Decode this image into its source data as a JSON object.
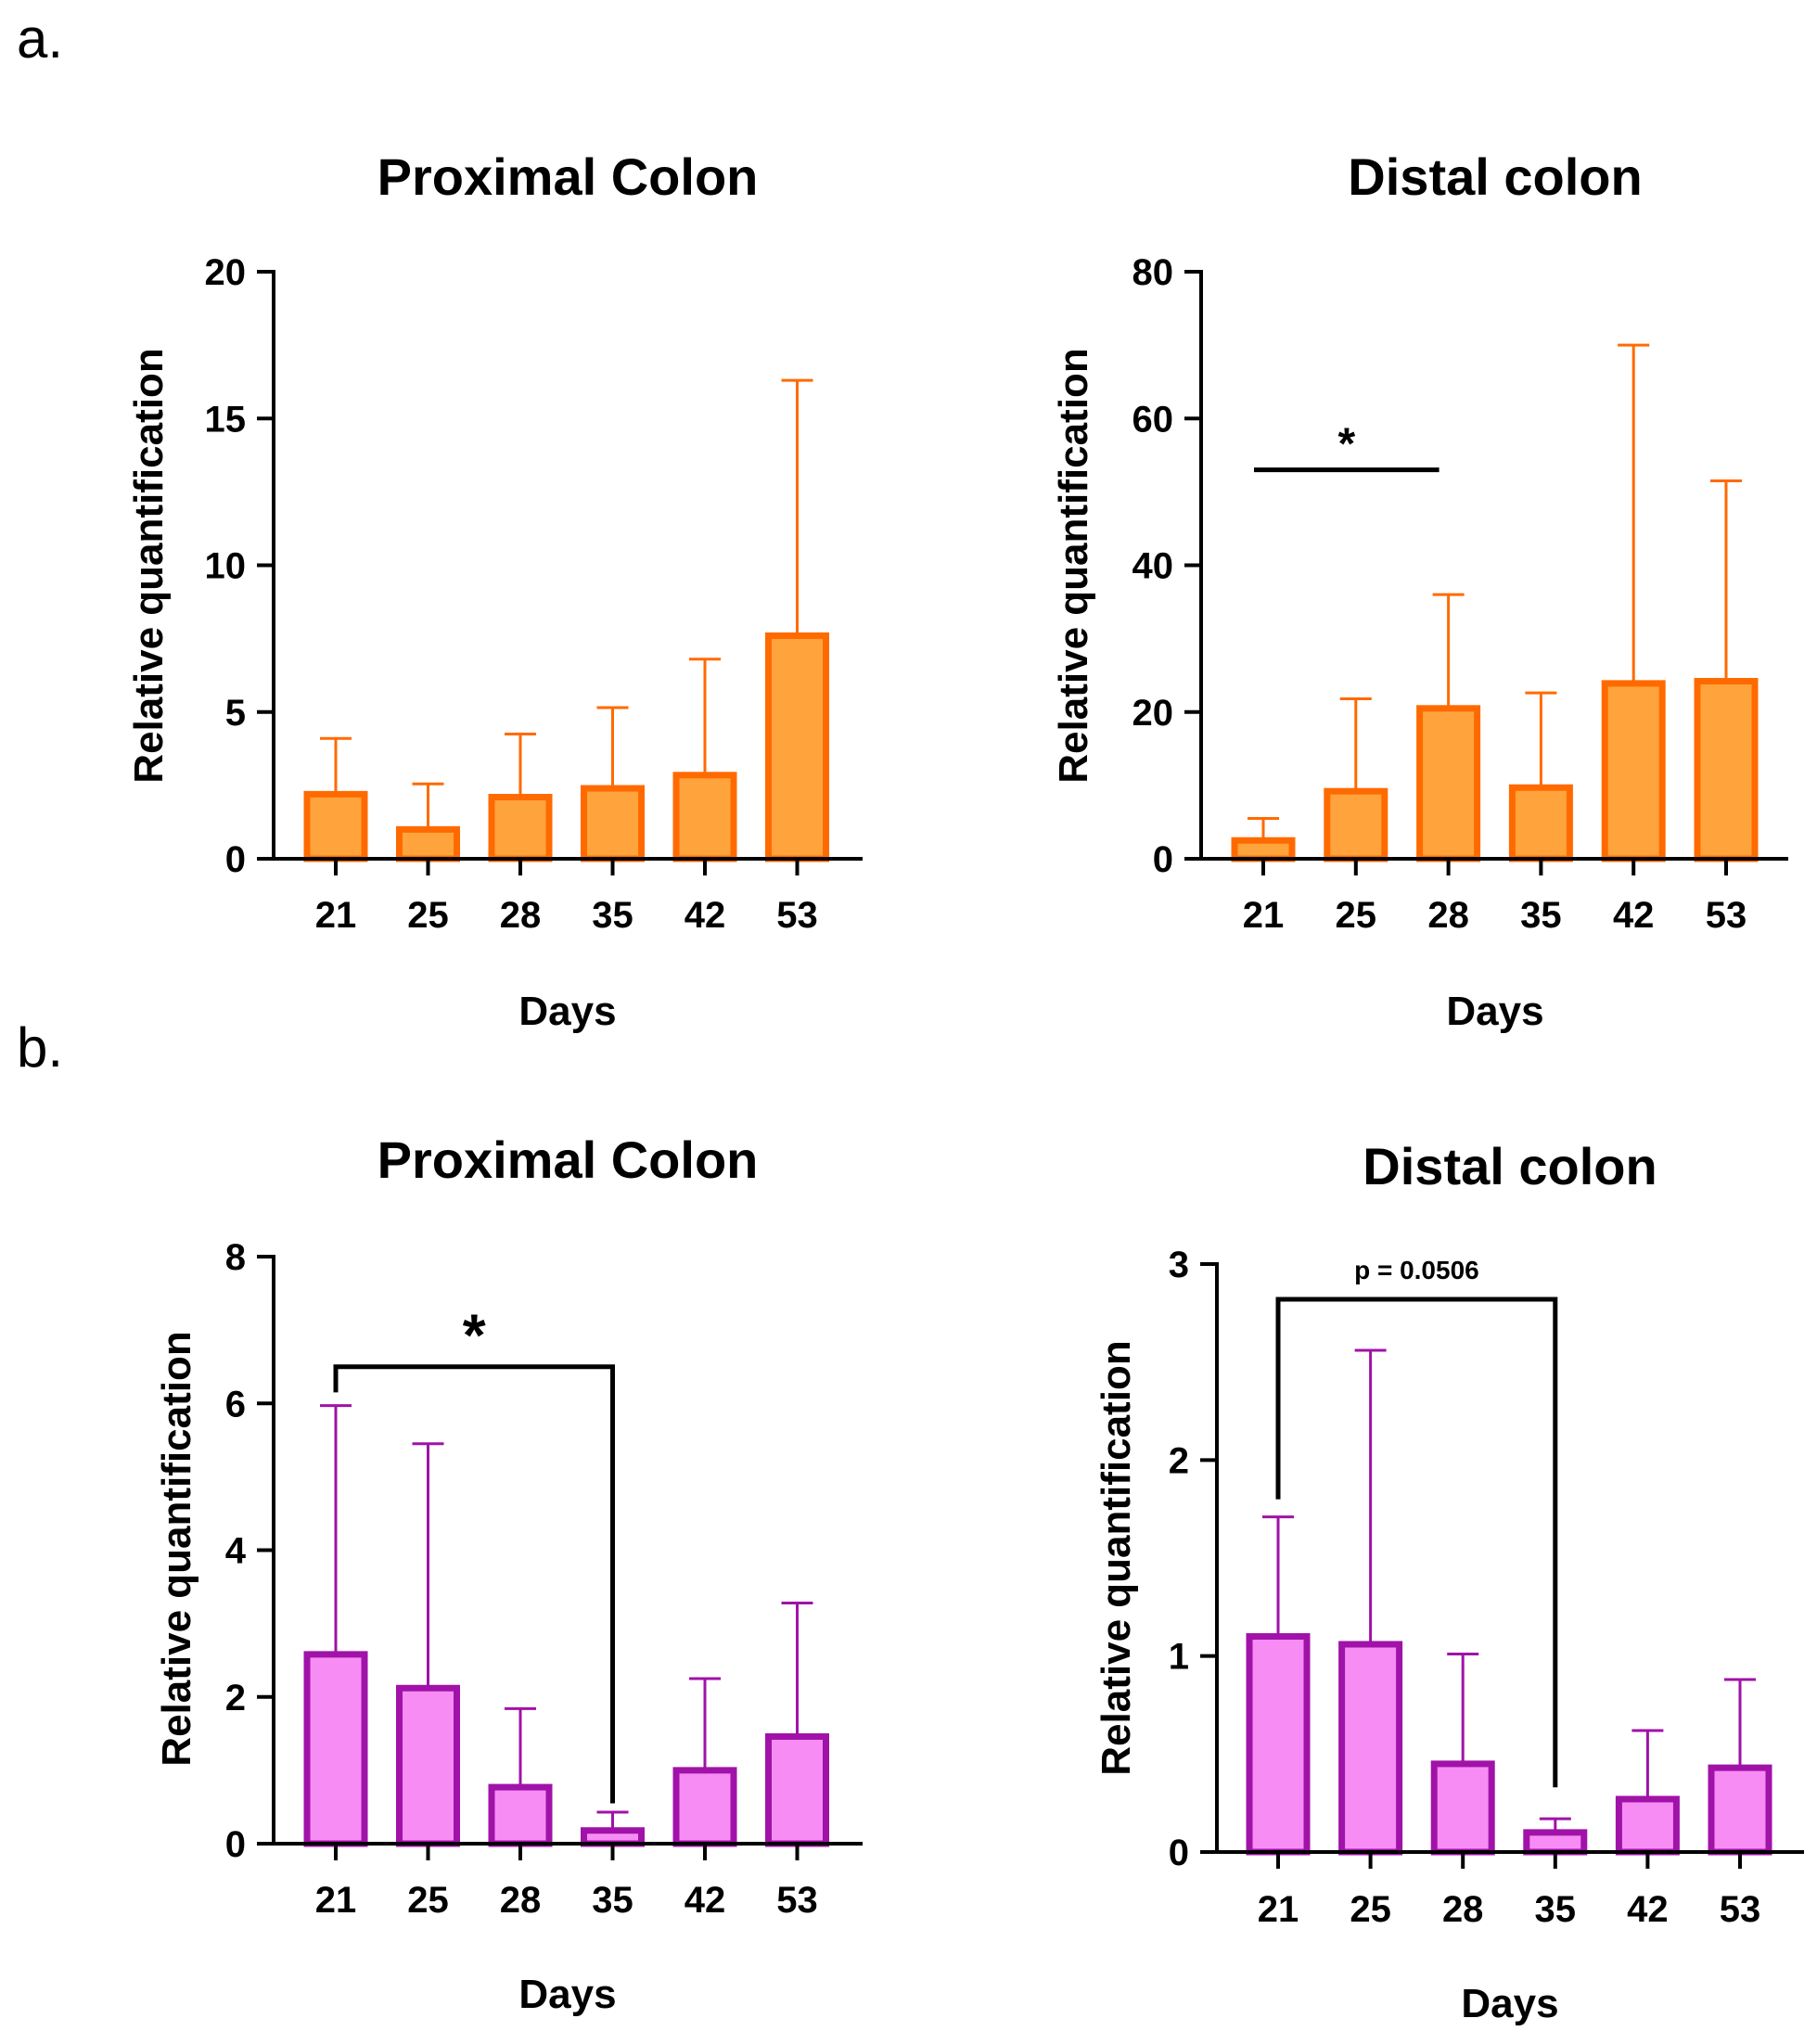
{
  "panel_labels": [
    "a.",
    "b."
  ],
  "chart_data": [
    {
      "type": "bar",
      "title": "Proximal Colon",
      "xlabel": "Days",
      "ylabel": "Relative quantification",
      "categories": [
        "21",
        "25",
        "28",
        "35",
        "42",
        "53"
      ],
      "values": [
        2.2,
        1.0,
        2.1,
        2.4,
        2.85,
        7.6
      ],
      "error_upper": [
        4.1,
        2.55,
        4.25,
        5.15,
        6.8,
        16.3
      ],
      "ylim": [
        0,
        20
      ],
      "yticks": [
        "0",
        "5",
        "10",
        "15",
        "20"
      ],
      "ytick_values": [
        0,
        5,
        10,
        15,
        20
      ],
      "colors": {
        "fill": "#FFA43C",
        "stroke": "#FF6A00"
      },
      "significance": []
    },
    {
      "type": "bar",
      "title": "Distal colon",
      "xlabel": "Days",
      "ylabel": "Relative quantification",
      "categories": [
        "21",
        "25",
        "28",
        "35",
        "42",
        "53"
      ],
      "values": [
        2.5,
        9.2,
        20.5,
        9.7,
        23.9,
        24.2
      ],
      "error_upper": [
        5.5,
        21.8,
        36.0,
        22.6,
        70.0,
        51.5
      ],
      "ylim": [
        0,
        80
      ],
      "yticks": [
        "0",
        "20",
        "40",
        "60",
        "80"
      ],
      "ytick_values": [
        0,
        20,
        40,
        60,
        80
      ],
      "colors": {
        "fill": "#FFA43C",
        "stroke": "#FF6A00"
      },
      "significance": [
        {
          "from": 0,
          "to": 2,
          "label": "*",
          "style": "line",
          "y": 53
        }
      ]
    },
    {
      "type": "bar",
      "title": "Proximal Colon",
      "xlabel": "Days",
      "ylabel": "Relative quantification",
      "categories": [
        "21",
        "25",
        "28",
        "35",
        "42",
        "53"
      ],
      "values": [
        2.58,
        2.12,
        0.77,
        0.18,
        1.0,
        1.46
      ],
      "error_upper": [
        5.97,
        5.45,
        1.84,
        0.43,
        2.25,
        3.28
      ],
      "ylim": [
        0,
        8
      ],
      "yticks": [
        "0",
        "2",
        "4",
        "6",
        "8"
      ],
      "ytick_values": [
        0,
        2,
        4,
        6,
        8
      ],
      "colors": {
        "fill": "#F78CF5",
        "stroke": "#A012A8"
      },
      "significance": [
        {
          "from": 0,
          "to": 3,
          "label": "*",
          "style": "bracket",
          "y": 6.5,
          "left_end": 6.15,
          "right_end": 0.55
        }
      ]
    },
    {
      "type": "bar",
      "title": "Distal colon",
      "xlabel": "Days",
      "ylabel": "Relative quantification",
      "categories": [
        "21",
        "25",
        "28",
        "35",
        "42",
        "53"
      ],
      "values": [
        1.1,
        1.06,
        0.45,
        0.1,
        0.27,
        0.43
      ],
      "error_upper": [
        1.71,
        2.56,
        1.01,
        0.17,
        0.62,
        0.88
      ],
      "ylim": [
        0,
        3
      ],
      "yticks": [
        "0",
        "1",
        "2",
        "3"
      ],
      "ytick_values": [
        0,
        1,
        2,
        3
      ],
      "colors": {
        "fill": "#F78CF5",
        "stroke": "#A012A8"
      },
      "significance": [
        {
          "from": 0,
          "to": 3,
          "label": "p = 0.0506",
          "style": "bracket",
          "y": 2.82,
          "left_end": 1.8,
          "right_end": 0.33
        }
      ]
    }
  ]
}
